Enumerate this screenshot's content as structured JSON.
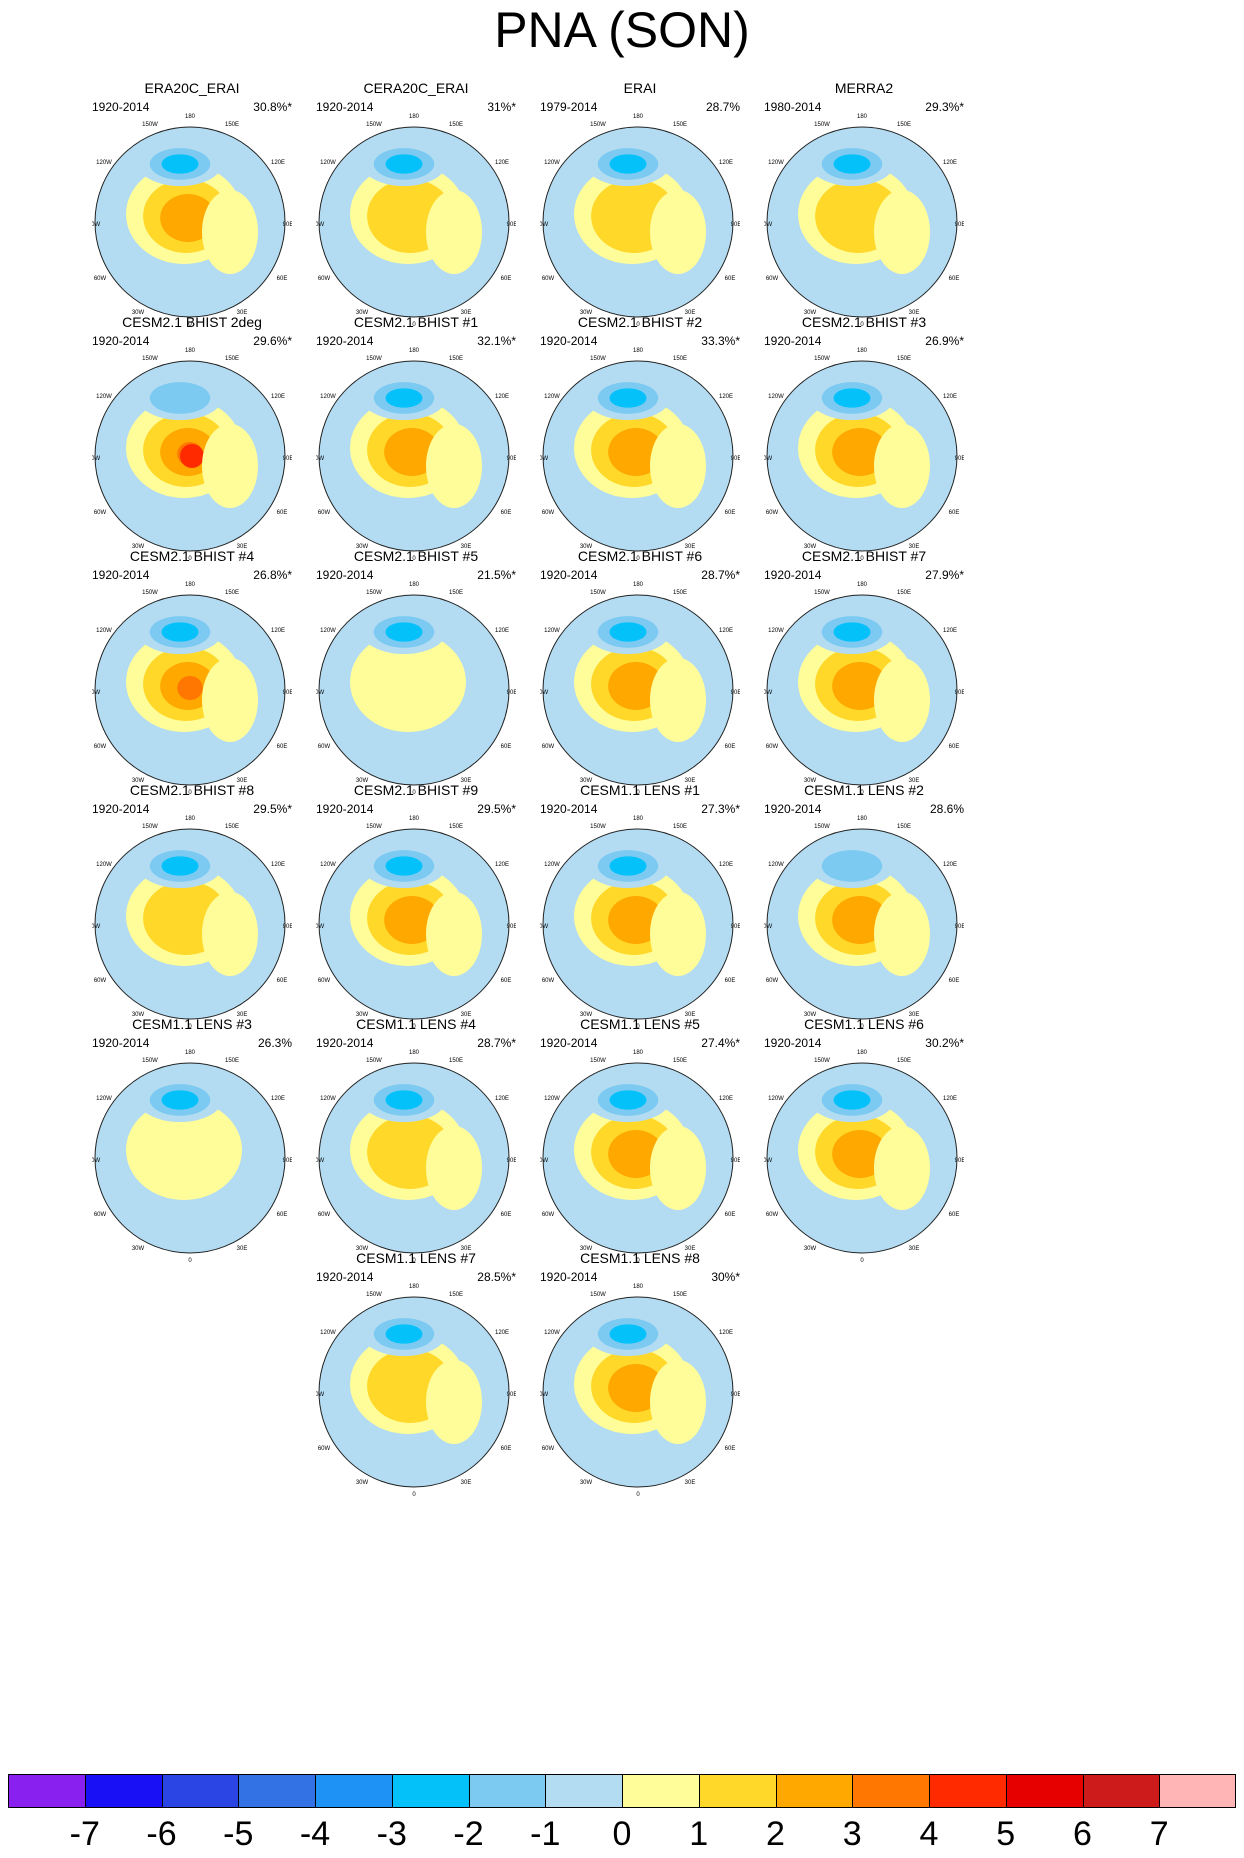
{
  "figure": {
    "title": "PNA (SON)"
  },
  "panels": [
    {
      "title": "ERA20C_ERAI",
      "period": "1920-2014",
      "variance": "30.8%*",
      "low": -2.2,
      "high": 2.1
    },
    {
      "title": "CERA20C_ERAI",
      "period": "1920-2014",
      "variance": "31%*",
      "low": -2.3,
      "high": 1.9
    },
    {
      "title": "ERAI",
      "period": "1979-2014",
      "variance": "28.7%",
      "low": -2.3,
      "high": 1.9
    },
    {
      "title": "MERRA2",
      "period": "1980-2014",
      "variance": "29.3%*",
      "low": -2.4,
      "high": 1.8
    },
    {
      "title": "CESM2.1 BHIST 2deg",
      "period": "1920-2014",
      "variance": "29.6%*",
      "low": -1.7,
      "high": 4.2
    },
    {
      "title": "CESM2.1 BHIST #1",
      "period": "1920-2014",
      "variance": "32.1%*",
      "low": -2.6,
      "high": 2.2
    },
    {
      "title": "CESM2.1 BHIST #2",
      "period": "1920-2014",
      "variance": "33.3%*",
      "low": -2.7,
      "high": 2.4
    },
    {
      "title": "CESM2.1 BHIST #3",
      "period": "1920-2014",
      "variance": "26.9%*",
      "low": -2.4,
      "high": 2.6
    },
    {
      "title": "CESM2.1 BHIST #4",
      "period": "1920-2014",
      "variance": "26.8%*",
      "low": -2.2,
      "high": 3.2
    },
    {
      "title": "CESM2.1 BHIST #5",
      "period": "1920-2014",
      "variance": "21.5%*",
      "low": -2.5,
      "high": 0.8
    },
    {
      "title": "CESM2.1 BHIST #6",
      "period": "1920-2014",
      "variance": "28.7%*",
      "low": -2.6,
      "high": 2.4
    },
    {
      "title": "CESM2.1 BHIST #7",
      "period": "1920-2014",
      "variance": "27.9%*",
      "low": -3.0,
      "high": 2.5
    },
    {
      "title": "CESM2.1 BHIST #8",
      "period": "1920-2014",
      "variance": "29.5%*",
      "low": -2.9,
      "high": 1.6
    },
    {
      "title": "CESM2.1 BHIST #9",
      "period": "1920-2014",
      "variance": "29.5%*",
      "low": -2.6,
      "high": 2.2
    },
    {
      "title": "CESM1.1 LENS #1",
      "period": "1920-2014",
      "variance": "27.3%*",
      "low": -2.3,
      "high": 2.3
    },
    {
      "title": "CESM1.1 LENS #2",
      "period": "1920-2014",
      "variance": "28.6%",
      "low": -1.7,
      "high": 3.0
    },
    {
      "title": "CESM1.1 LENS #3",
      "period": "1920-2014",
      "variance": "26.3%",
      "low": -2.6,
      "high": 0.7
    },
    {
      "title": "CESM1.1 LENS #4",
      "period": "1920-2014",
      "variance": "28.7%*",
      "low": -2.5,
      "high": 1.9
    },
    {
      "title": "CESM1.1 LENS #5",
      "period": "1920-2014",
      "variance": "27.4%*",
      "low": -2.6,
      "high": 2.2
    },
    {
      "title": "CESM1.1 LENS #6",
      "period": "1920-2014",
      "variance": "30.2%*",
      "low": -2.8,
      "high": 3.0
    },
    {
      "title": "CESM1.1 LENS #7",
      "period": "1920-2014",
      "variance": "28.5%*",
      "low": -2.8,
      "high": 1.9
    },
    {
      "title": "CESM1.1 LENS #8",
      "period": "1920-2014",
      "variance": "30%*",
      "low": -2.1,
      "high": 2.4
    }
  ],
  "map_labels": {
    "lon_180": "180",
    "lon_150W": "150W",
    "lon_150E": "150E",
    "lon_120W": "120W",
    "lon_120E": "120E",
    "lon_90W": "90W",
    "lon_90E": "90E",
    "lon_60W": "60W",
    "lon_60E": "60E",
    "lon_30W": "30W",
    "lon_30E": "30E",
    "lon_0": "0"
  },
  "colorbar": {
    "labels": [
      "-7",
      "-6",
      "-5",
      "-4",
      "-3",
      "-2",
      "-1",
      "0",
      "1",
      "2",
      "3",
      "4",
      "5",
      "6",
      "7"
    ],
    "colors": [
      "#8a20f0",
      "#1a10f5",
      "#2a45e3",
      "#3272e4",
      "#1e93f5",
      "#04c1fa",
      "#7ccaf2",
      "#b3dcf2",
      "#fffc9a",
      "#ffd82a",
      "#ffa800",
      "#ff7700",
      "#ff2a00",
      "#e70000",
      "#cd1a1a",
      "#ffb5b5"
    ]
  }
}
